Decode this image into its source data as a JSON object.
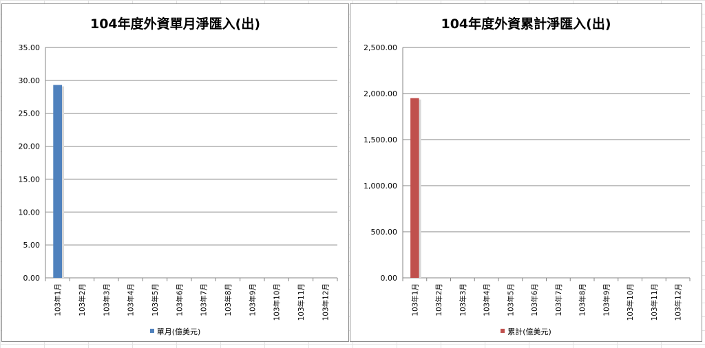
{
  "chart_data": [
    {
      "type": "bar",
      "title": "104年度外資單月淨匯入(出)",
      "categories": [
        "103年1月",
        "103年2月",
        "103年3月",
        "103年4月",
        "103年5月",
        "103年6月",
        "103年7月",
        "103年8月",
        "103年9月",
        "103年10月",
        "103年11月",
        "103年12月"
      ],
      "series": [
        {
          "name": "單月(億美元)",
          "values": [
            29.3,
            null,
            null,
            null,
            null,
            null,
            null,
            null,
            null,
            null,
            null,
            null
          ],
          "color": "#4f81bd"
        }
      ],
      "ylim": [
        0,
        35
      ],
      "yticks": [
        0,
        5,
        10,
        15,
        20,
        25,
        30,
        35
      ],
      "ytick_labels": [
        "0.00",
        "5.00",
        "10.00",
        "15.00",
        "20.00",
        "25.00",
        "30.00",
        "35.00"
      ],
      "grid": true,
      "legend_position": "bottom"
    },
    {
      "type": "bar",
      "title": "104年度外資累計淨匯入(出)",
      "categories": [
        "103年1月",
        "103年2月",
        "103年3月",
        "103年4月",
        "103年5月",
        "103年6月",
        "103年7月",
        "103年8月",
        "103年9月",
        "103年10月",
        "103年11月",
        "103年12月"
      ],
      "series": [
        {
          "name": "累計(億美元)",
          "values": [
            1950,
            null,
            null,
            null,
            null,
            null,
            null,
            null,
            null,
            null,
            null,
            null
          ],
          "color": "#c0504d"
        }
      ],
      "ylim": [
        0,
        2500
      ],
      "yticks": [
        0,
        500,
        1000,
        1500,
        2000,
        2500
      ],
      "ytick_labels": [
        "0.00",
        "500.00",
        "1,000.00",
        "1,500.00",
        "2,000.00",
        "2,500.00"
      ],
      "grid": true,
      "legend_position": "bottom"
    }
  ]
}
